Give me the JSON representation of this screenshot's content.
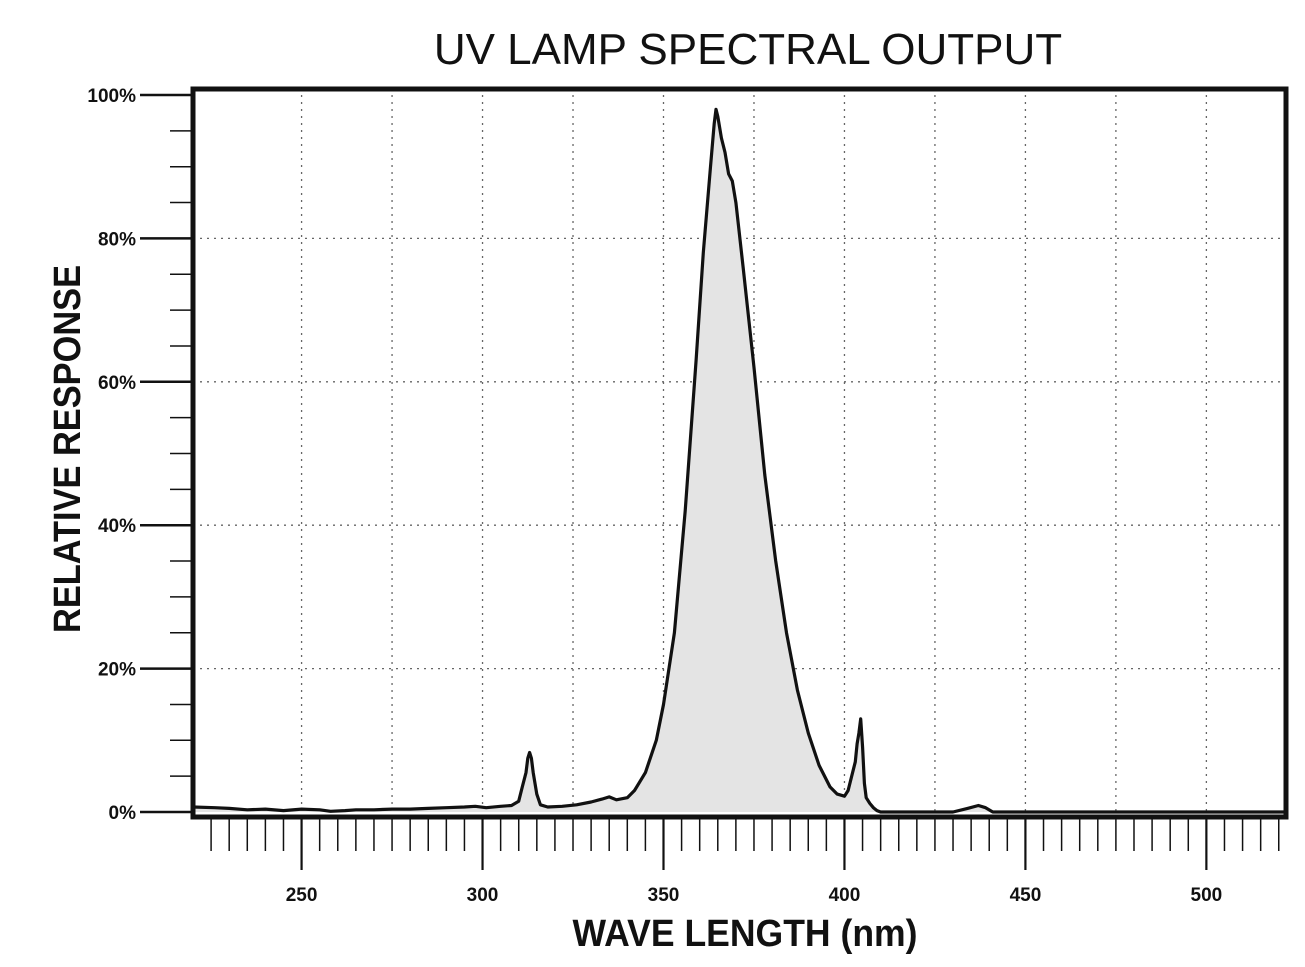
{
  "chart_data": {
    "type": "area",
    "title": "UV LAMP SPECTRAL OUTPUT",
    "xlabel": "WAVE LENGTH (nm)",
    "ylabel": "RELATIVE RESPONSE",
    "xlim": [
      220,
      522
    ],
    "ylim": [
      0,
      100
    ],
    "x_ticks": [
      250,
      300,
      350,
      400,
      450,
      500
    ],
    "x_tick_labels": [
      "250",
      "300",
      "350",
      "400",
      "450",
      "500"
    ],
    "y_ticks": [
      0,
      20,
      40,
      60,
      80,
      100
    ],
    "y_tick_labels": [
      "0%",
      "20%",
      "40%",
      "60%",
      "80%",
      "100%"
    ],
    "grid": true,
    "legend": "none",
    "colors": {
      "line": "#111111",
      "fill": "#e4e4e4",
      "grid": "#666666",
      "frame": "#111111"
    },
    "series": [
      {
        "x": [
          220,
          226,
          230,
          235,
          240,
          245,
          250,
          255,
          258,
          262,
          265,
          270,
          275,
          280,
          285,
          290,
          295,
          298,
          301,
          305,
          308,
          310,
          311,
          312,
          312.5,
          313,
          313.5,
          314,
          315,
          316,
          318,
          322,
          326,
          330,
          333,
          335,
          337,
          340,
          342,
          345,
          348,
          350,
          353,
          356,
          359,
          361,
          363,
          364,
          364.5,
          365,
          366,
          367,
          368,
          369,
          370,
          372,
          375,
          378,
          381,
          384,
          387,
          390,
          393,
          396,
          398,
          400,
          401,
          402,
          403,
          403.5,
          404,
          404.5,
          405,
          405.5,
          406,
          407,
          408,
          409,
          410,
          415,
          420,
          425,
          430,
          434,
          437,
          439,
          441,
          445,
          450,
          460,
          470,
          480,
          490,
          500,
          510,
          522
        ],
        "y": [
          0.7,
          0.6,
          0.5,
          0.3,
          0.4,
          0.2,
          0.4,
          0.3,
          0.1,
          0.2,
          0.3,
          0.3,
          0.4,
          0.4,
          0.5,
          0.6,
          0.7,
          0.8,
          0.6,
          0.8,
          0.9,
          1.5,
          3.5,
          5.5,
          7.5,
          8.3,
          7.5,
          5.5,
          2.5,
          1.0,
          0.7,
          0.8,
          1.0,
          1.4,
          1.8,
          2.1,
          1.7,
          2.0,
          3.0,
          5.5,
          10,
          15,
          25,
          42,
          63,
          78,
          90,
          96,
          98,
          97,
          94,
          92,
          89,
          88,
          85,
          76,
          62,
          47,
          35,
          25,
          17,
          11,
          6.5,
          3.5,
          2.5,
          2.2,
          3.0,
          5.0,
          7.0,
          9.5,
          11.0,
          13.0,
          9.0,
          4.0,
          2.0,
          1.2,
          0.6,
          0.2,
          0,
          0,
          0,
          0,
          0,
          0.5,
          0.9,
          0.6,
          0,
          0,
          0,
          0,
          0,
          0,
          0,
          0,
          0,
          0
        ]
      }
    ]
  }
}
